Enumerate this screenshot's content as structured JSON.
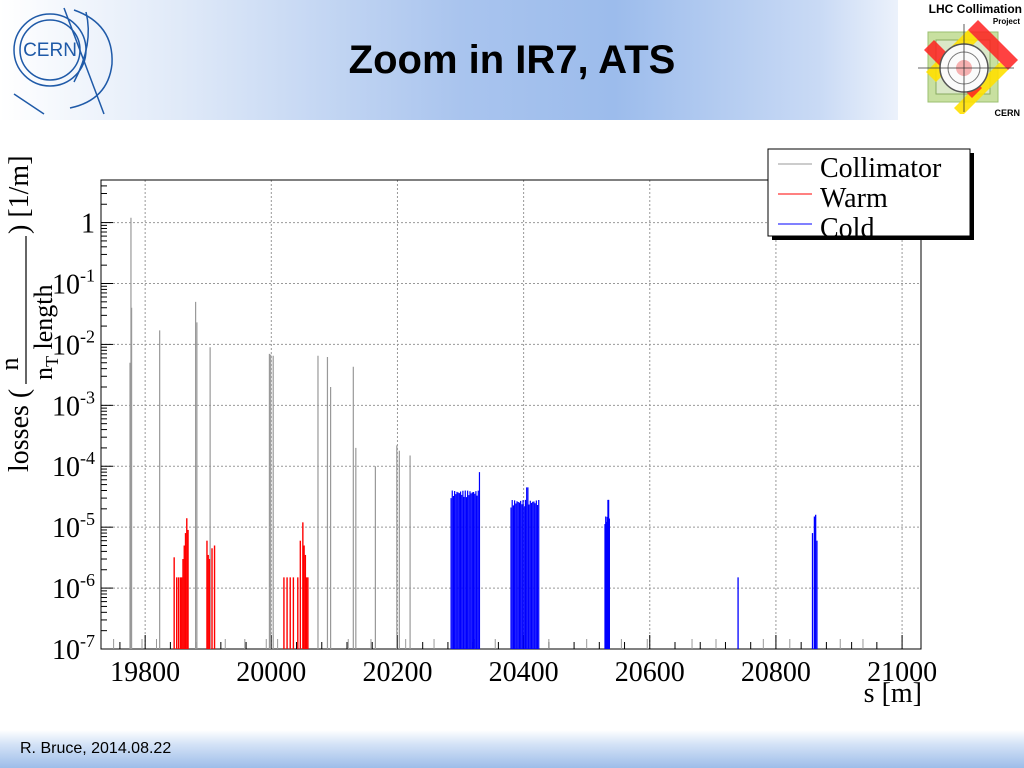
{
  "header": {
    "title": "Zoom in IR7, ATS",
    "cern_logo_text": "CERN",
    "lhc_logo": {
      "title": "LHC Collimation",
      "subtitle": "Project",
      "org": "CERN"
    }
  },
  "footer": {
    "text": "R. Bruce, 2014.08.22"
  },
  "chart_data": {
    "type": "bar",
    "title": "",
    "xlabel": "s [m]",
    "ylabel_parts": {
      "prefix": "losses (",
      "numerator": "n",
      "denominator": "n",
      "denominator_subscript": "T",
      "middle": " length",
      "suffix": ") [1/m]"
    },
    "x_ticks": [
      19800,
      20000,
      20200,
      20400,
      20600,
      20800,
      21000
    ],
    "y_scale": "log",
    "y_ticks": [
      {
        "value": 1,
        "base": "1",
        "exp": ""
      },
      {
        "value": 0.1,
        "base": "10",
        "exp": "-1"
      },
      {
        "value": 0.01,
        "base": "10",
        "exp": "-2"
      },
      {
        "value": 0.001,
        "base": "10",
        "exp": "-3"
      },
      {
        "value": 0.0001,
        "base": "10",
        "exp": "-4"
      },
      {
        "value": 1e-05,
        "base": "10",
        "exp": "-5"
      },
      {
        "value": 1e-06,
        "base": "10",
        "exp": "-6"
      },
      {
        "value": 1e-07,
        "base": "10",
        "exp": "-7"
      }
    ],
    "xlim": [
      19730,
      21030
    ],
    "ylim": [
      1e-07,
      5
    ],
    "grid": true,
    "legend_position": "top-right",
    "series": [
      {
        "name": "Collimator",
        "color": "#999999",
        "points": [
          [
            19776,
            0.005
          ],
          [
            19777.5,
            1.2
          ],
          [
            19778.5,
            0.04
          ],
          [
            19823,
            0.017
          ],
          [
            19880,
            0.05
          ],
          [
            19882,
            0.023
          ],
          [
            19903,
            0.009
          ],
          [
            19997,
            0.007
          ],
          [
            19999,
            0.0068
          ],
          [
            20003,
            0.0065
          ],
          [
            20074,
            0.0065
          ],
          [
            20089,
            0.0062
          ],
          [
            20094,
            0.002
          ],
          [
            20130,
            0.0043
          ],
          [
            20134,
            0.0002
          ],
          [
            20165,
            0.0001
          ],
          [
            20199,
            0.00022
          ],
          [
            20203,
            0.00018
          ],
          [
            20220,
            0.00015
          ]
        ]
      },
      {
        "name": "Warm",
        "color": "#ff0000",
        "points": [
          [
            19846,
            3.2e-06
          ],
          [
            19850,
            1.5e-06
          ],
          [
            19853,
            1.5e-06
          ],
          [
            19856,
            1.5e-06
          ],
          [
            19858,
            1.5e-06
          ],
          [
            19860,
            3e-06
          ],
          [
            19862,
            5e-06
          ],
          [
            19864,
            8e-06
          ],
          [
            19866,
            1.4e-05
          ],
          [
            19868,
            9e-06
          ],
          [
            19898,
            6e-06
          ],
          [
            19900,
            3.5e-06
          ],
          [
            19902,
            3e-06
          ],
          [
            19906,
            4.5e-06
          ],
          [
            19910,
            5e-06
          ],
          [
            20020,
            1.5e-06
          ],
          [
            20025,
            1.5e-06
          ],
          [
            20030,
            1.5e-06
          ],
          [
            20035,
            1.5e-06
          ],
          [
            20042,
            1.5e-06
          ],
          [
            20046,
            6e-06
          ],
          [
            20050,
            1.2e-05
          ],
          [
            20052,
            5e-06
          ],
          [
            20054,
            3.5e-06
          ],
          [
            20056,
            1.5e-06
          ],
          [
            20058,
            1.5e-06
          ]
        ]
      },
      {
        "name": "Cold",
        "color": "#0000ff",
        "bands": [
          {
            "from": 20285,
            "to": 20330,
            "level": 4e-05,
            "peak": 8e-05,
            "peak_at": 20330
          },
          {
            "from": 20380,
            "to": 20424,
            "level": 2.8e-05,
            "peak": 4.5e-05,
            "peak_at": 20405
          },
          {
            "from": 20529,
            "to": 20536,
            "level": 1.5e-05,
            "peak": 2.8e-05,
            "peak_at": 20534
          }
        ],
        "points": [
          [
            20740,
            1.5e-06
          ],
          [
            20861,
            1.5e-05
          ],
          [
            20863,
            1.6e-05
          ],
          [
            20858,
            8e-06
          ],
          [
            20865,
            6e-06
          ]
        ]
      }
    ],
    "baseline_ticks": [
      19750,
      19795,
      19818,
      19927,
      19958,
      19992,
      20010,
      20055,
      20122,
      20158,
      20213,
      20258,
      20322,
      20355,
      20440,
      20500,
      20555,
      20596,
      20667,
      20705,
      20780,
      20822,
      20902,
      20938
    ]
  }
}
